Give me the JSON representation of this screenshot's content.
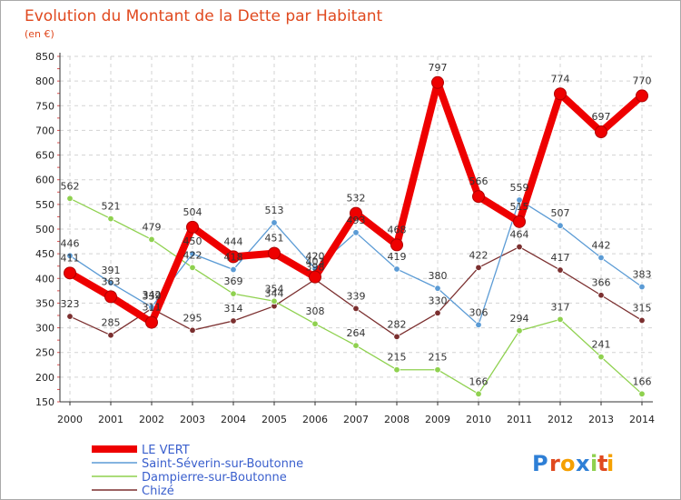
{
  "chart_data": {
    "type": "line",
    "title": "Evolution du Montant de la Dette par Habitant",
    "subtitle": "(en €)",
    "xlabel": "",
    "ylabel": "",
    "categories": [
      "2000",
      "2001",
      "2002",
      "2003",
      "2004",
      "2005",
      "2006",
      "2007",
      "2008",
      "2009",
      "2010",
      "2011",
      "2012",
      "2013",
      "2014"
    ],
    "ylim": [
      150,
      850
    ],
    "yticks": [
      150,
      200,
      250,
      300,
      350,
      400,
      450,
      500,
      550,
      600,
      650,
      700,
      750,
      800,
      850
    ],
    "grid": true,
    "legend_position": "bottom-left",
    "series": [
      {
        "name": "LE VERT",
        "color": "#ee0000",
        "values": [
          411,
          363,
          311,
          504,
          444,
          451,
          403,
          532,
          468,
          797,
          566,
          515,
          774,
          697,
          770
        ]
      },
      {
        "name": "Saint-Séverin-sur-Boutonne",
        "color": "#5b9bd5",
        "values": [
          446,
          391,
          342,
          450,
          418,
          513,
          420,
          493,
          419,
          380,
          306,
          559,
          507,
          442,
          383
        ]
      },
      {
        "name": "Dampierre-sur-Boutonne",
        "color": "#8fd14f",
        "values": [
          562,
          521,
          479,
          422,
          369,
          354,
          308,
          264,
          215,
          215,
          166,
          294,
          317,
          241,
          166
        ]
      },
      {
        "name": "Chizé",
        "color": "#7b2f2f",
        "values": [
          323,
          285,
          339,
          295,
          314,
          344,
          398,
          339,
          282,
          330,
          422,
          464,
          417,
          366,
          315
        ]
      }
    ]
  },
  "logo": {
    "text": "Proxiti",
    "letters": [
      "P",
      "r",
      "o",
      "x",
      "i",
      "t",
      "i"
    ],
    "colors": [
      "#2e7fd6",
      "#e0491f",
      "#f5a000",
      "#2e7fd6",
      "#8fd14f",
      "#e0491f",
      "#f5a000"
    ]
  }
}
